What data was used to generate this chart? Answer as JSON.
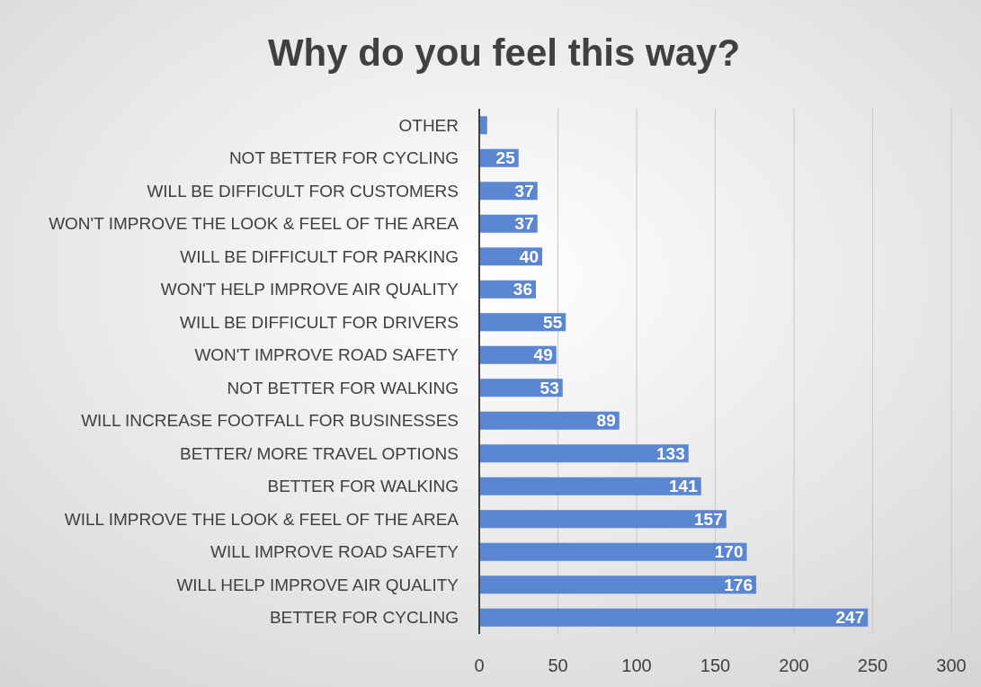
{
  "chart_data": {
    "type": "bar",
    "orientation": "horizontal",
    "title": "Why do you feel this way?",
    "categories": [
      "OTHER",
      "NOT BETTER FOR CYCLING",
      "WILL BE DIFFICULT FOR CUSTOMERS",
      "WON'T IMPROVE THE LOOK & FEEL OF THE AREA",
      "WILL BE DIFFICULT FOR PARKING",
      "WON'T HELP IMPROVE AIR QUALITY",
      "WILL BE DIFFICULT FOR DRIVERS",
      "WON'T IMPROVE ROAD SAFETY",
      "NOT BETTER FOR WALKING",
      "WILL INCREASE FOOTFALL FOR BUSINESSES",
      "BETTER/ MORE TRAVEL OPTIONS",
      "BETTER FOR WALKING",
      "WILL IMPROVE THE LOOK & FEEL OF THE AREA",
      "WILL IMPROVE ROAD SAFETY",
      "WILL HELP IMPROVE AIR QUALITY",
      "BETTER FOR CYCLING"
    ],
    "values": [
      5,
      25,
      37,
      37,
      40,
      36,
      55,
      49,
      53,
      89,
      133,
      141,
      157,
      170,
      176,
      247
    ],
    "value_labels": [
      null,
      "25",
      "37",
      "37",
      "40",
      "36",
      "55",
      "49",
      "53",
      "89",
      "133",
      "141",
      "157",
      "170",
      "176",
      "247"
    ],
    "color": "#5b86d1",
    "xlim": [
      0,
      300
    ],
    "xticks": [
      0,
      50,
      100,
      150,
      200,
      250,
      300
    ],
    "grid": "x"
  }
}
